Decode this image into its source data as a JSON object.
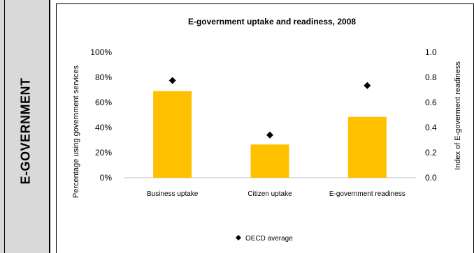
{
  "sidebar": {
    "label": "E-GOVERNMENT"
  },
  "top_fragment": ", ",
  "chart_data": {
    "type": "bar",
    "title": "E-government uptake and readiness, 2008",
    "categories": [
      "Business uptake",
      "Citizen uptake",
      "E-government readiness"
    ],
    "series": [
      {
        "name": "",
        "axis": "left",
        "values": [
          0.69,
          0.265,
          0.485
        ]
      },
      {
        "name": "OECD average",
        "axis": "right",
        "marker": "diamond",
        "values": [
          0.775,
          0.34,
          0.735
        ]
      }
    ],
    "ylabel": "Percentage using government services",
    "y2label": "Index of E-goverment readiness",
    "ylim": [
      0,
      1
    ],
    "y2lim": [
      0,
      1
    ],
    "yticks": [
      "0%",
      "20%",
      "40%",
      "60%",
      "80%",
      "100%"
    ],
    "y2ticks": [
      "0.0",
      "0.2",
      "0.4",
      "0.6",
      "0.8",
      "1.0"
    ],
    "colors": {
      "bar": "#FFC000",
      "marker": "#000000"
    },
    "grid": false,
    "legend": "bottom"
  }
}
